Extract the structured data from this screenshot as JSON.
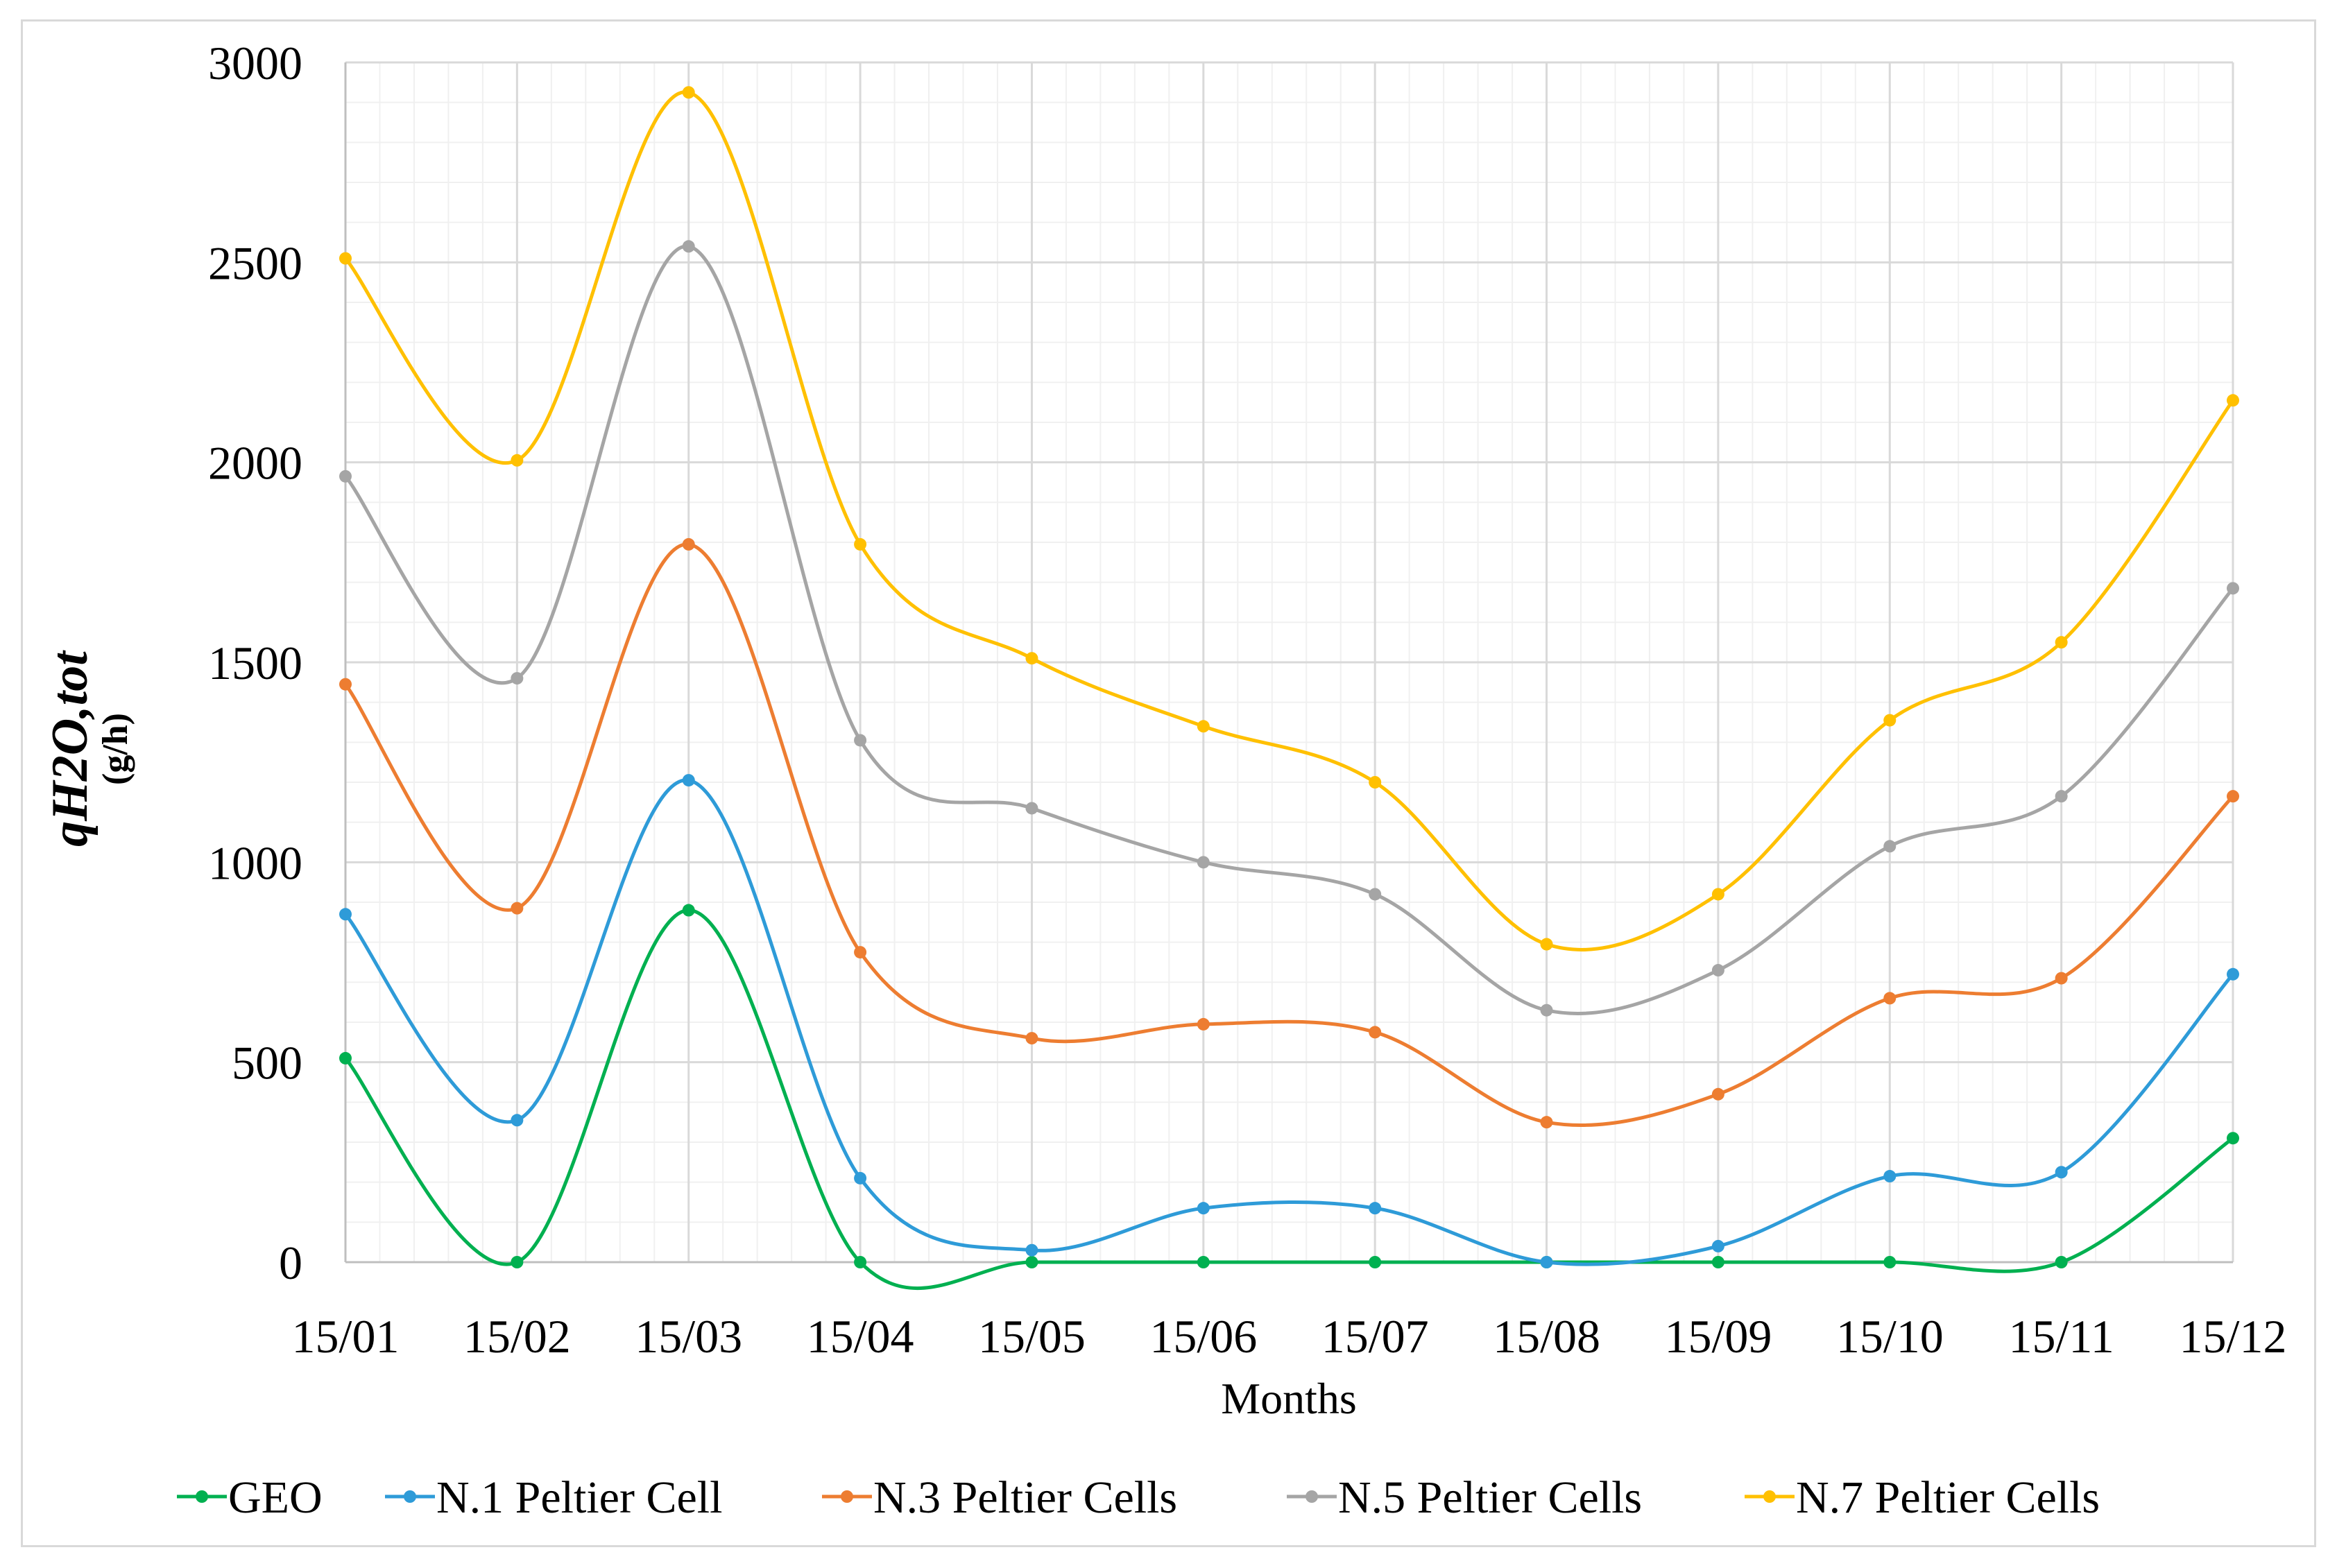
{
  "chart_data": {
    "type": "line",
    "title": "",
    "xlabel": "Months",
    "ylabel": "qH2O,tot",
    "ylabel_unit": "(g/h)",
    "categories": [
      "15/01",
      "15/02",
      "15/03",
      "15/04",
      "15/05",
      "15/06",
      "15/07",
      "15/08",
      "15/09",
      "15/10",
      "15/11",
      "15/12"
    ],
    "ylim": [
      0,
      3000
    ],
    "yticks": [
      0,
      500,
      1000,
      1500,
      2000,
      2500,
      3000
    ],
    "grid": true,
    "smooth": true,
    "legend_position": "bottom",
    "series": [
      {
        "name": "GEO",
        "color": "#00b050",
        "values": [
          510,
          0,
          880,
          0,
          0,
          0,
          0,
          0,
          0,
          0,
          0,
          310
        ]
      },
      {
        "name": "N.1 Peltier Cell",
        "color": "#2e9bd8",
        "values": [
          870,
          355,
          1205,
          210,
          30,
          135,
          135,
          0,
          40,
          215,
          225,
          720
        ]
      },
      {
        "name": "N.3 Peltier Cells",
        "color": "#ed7d31",
        "values": [
          1445,
          885,
          1795,
          775,
          560,
          595,
          575,
          350,
          420,
          660,
          710,
          1165
        ]
      },
      {
        "name": "N.5 Peltier Cells",
        "color": "#a5a5a5",
        "values": [
          1965,
          1460,
          2540,
          1305,
          1135,
          1000,
          920,
          630,
          730,
          1040,
          1165,
          1685
        ]
      },
      {
        "name": "N.7 Peltier Cells",
        "color": "#ffc000",
        "values": [
          2510,
          2005,
          2925,
          1795,
          1510,
          1340,
          1200,
          795,
          920,
          1355,
          1550,
          2155
        ]
      }
    ]
  }
}
